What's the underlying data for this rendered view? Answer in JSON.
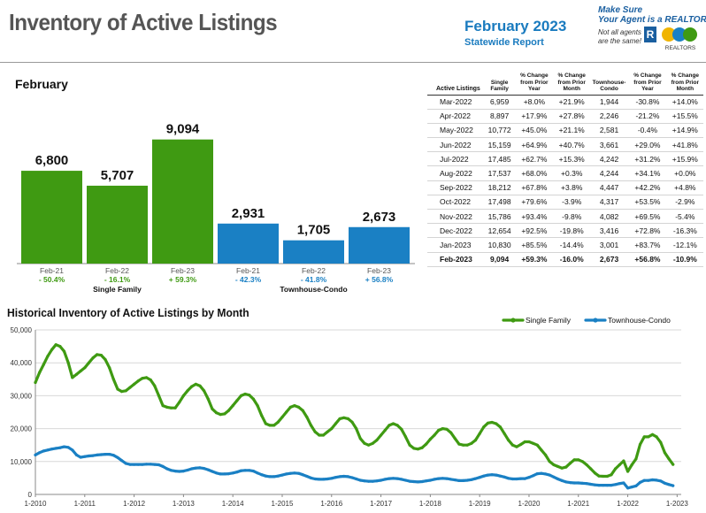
{
  "header": {
    "title": "Inventory of Active Listings",
    "report_month": "February 2023",
    "report_sub": "Statewide Report",
    "brand_line1": "Make Sure",
    "brand_line2": "Your Agent is a REALTOR®",
    "brand_note1": "Not all agents",
    "brand_note2": "are the same!",
    "realtor_mark": "R",
    "assoc_logo_text": "REALTORS"
  },
  "bar_section": {
    "title": "February",
    "group_labels": [
      "Single Family",
      "Townhouse-Condo"
    ]
  },
  "colors": {
    "single_family": "#3f9a12",
    "townhouse_condo": "#1a80c4",
    "positive_green": "#3f9a12",
    "negative_blue": "#1a80c4",
    "title_gray": "#555555",
    "report_blue": "#1a7bbf"
  },
  "stats_table": {
    "headers": [
      "Active Listings",
      "Single Family",
      "% Change from Prior Year",
      "% Change from Prior Month",
      "Townhouse-Condo",
      "% Change from Prior Year",
      "% Change from Prior Month"
    ],
    "rows": [
      [
        "Mar-2022",
        "6,959",
        "+8.0%",
        "+21.9%",
        "1,944",
        "-30.8%",
        "+14.0%"
      ],
      [
        "Apr-2022",
        "8,897",
        "+17.9%",
        "+27.8%",
        "2,246",
        "-21.2%",
        "+15.5%"
      ],
      [
        "May-2022",
        "10,772",
        "+45.0%",
        "+21.1%",
        "2,581",
        "-0.4%",
        "+14.9%"
      ],
      [
        "Jun-2022",
        "15,159",
        "+64.9%",
        "+40.7%",
        "3,661",
        "+29.0%",
        "+41.8%"
      ],
      [
        "Jul-2022",
        "17,485",
        "+62.7%",
        "+15.3%",
        "4,242",
        "+31.2%",
        "+15.9%"
      ],
      [
        "Aug-2022",
        "17,537",
        "+68.0%",
        "+0.3%",
        "4,244",
        "+34.1%",
        "+0.0%"
      ],
      [
        "Sep-2022",
        "18,212",
        "+67.8%",
        "+3.8%",
        "4,447",
        "+42.2%",
        "+4.8%"
      ],
      [
        "Oct-2022",
        "17,498",
        "+79.6%",
        "-3.9%",
        "4,317",
        "+53.5%",
        "-2.9%"
      ],
      [
        "Nov-2022",
        "15,786",
        "+93.4%",
        "-9.8%",
        "4,082",
        "+69.5%",
        "-5.4%"
      ],
      [
        "Dec-2022",
        "12,654",
        "+92.5%",
        "-19.8%",
        "3,416",
        "+72.8%",
        "-16.3%"
      ],
      [
        "Jan-2023",
        "10,830",
        "+85.5%",
        "-14.4%",
        "3,001",
        "+83.7%",
        "-12.1%"
      ],
      [
        "Feb-2023",
        "9,094",
        "+59.3%",
        "-16.0%",
        "2,673",
        "+56.8%",
        "-10.9%"
      ]
    ]
  },
  "historical": {
    "title": "Historical Inventory of Active Listings by Month"
  },
  "chart_data": [
    {
      "type": "bar",
      "title": "February",
      "categories": [
        "Feb-21",
        "Feb-22",
        "Feb-23",
        "Feb-21",
        "Feb-22",
        "Feb-23"
      ],
      "groups": [
        "Single Family",
        "Single Family",
        "Single Family",
        "Townhouse-Condo",
        "Townhouse-Condo",
        "Townhouse-Condo"
      ],
      "values": [
        6800,
        5707,
        9094,
        2931,
        1705,
        2673
      ],
      "value_labels": [
        "6,800",
        "5,707",
        "9,094",
        "2,931",
        "1,705",
        "2,673"
      ],
      "change_labels": [
        "- 50.4%",
        "- 16.1%",
        "+ 59.3%",
        "- 42.3%",
        "- 41.8%",
        "+ 56.8%"
      ],
      "bar_colors": [
        "#3f9a12",
        "#3f9a12",
        "#3f9a12",
        "#1a80c4",
        "#1a80c4",
        "#1a80c4"
      ],
      "ylim": [
        0,
        10500
      ]
    },
    {
      "type": "line",
      "title": "Historical Inventory of Active Listings by Month",
      "x_start": "2010-01",
      "x_end": "2023-02",
      "x_ticks": [
        "1-2010",
        "1-2011",
        "1-2012",
        "1-2013",
        "1-2014",
        "1-2015",
        "1-2016",
        "1-2017",
        "1-2018",
        "1-2019",
        "1-2020",
        "1-2021",
        "1-2022",
        "1-2023"
      ],
      "y_ticks": [
        "0",
        "10,000",
        "20,000",
        "30,000",
        "40,000",
        "50,000"
      ],
      "ylim": [
        0,
        50000
      ],
      "grid": true,
      "legend_position": "top-right",
      "series": [
        {
          "name": "Single Family",
          "color": "#3f9a12",
          "values": [
            34000,
            37000,
            39500,
            42000,
            44000,
            45500,
            45000,
            43500,
            40000,
            35500,
            36500,
            37500,
            38500,
            40000,
            41500,
            42500,
            42300,
            41000,
            38500,
            35000,
            32000,
            31300,
            31500,
            32500,
            33500,
            34500,
            35300,
            35500,
            34800,
            33000,
            30000,
            27000,
            26500,
            26300,
            26300,
            28000,
            30000,
            31500,
            32800,
            33500,
            33000,
            31500,
            29000,
            26000,
            24800,
            24300,
            24500,
            25500,
            27000,
            28500,
            30000,
            30500,
            30200,
            29000,
            27000,
            24000,
            21500,
            21000,
            21000,
            22000,
            23500,
            25000,
            26500,
            27000,
            26500,
            25500,
            23500,
            21000,
            19000,
            18000,
            18000,
            19000,
            20000,
            21500,
            23000,
            23300,
            23000,
            22000,
            20000,
            17000,
            15500,
            15000,
            15500,
            16500,
            18000,
            19500,
            21000,
            21500,
            21000,
            19800,
            17500,
            15000,
            14000,
            13800,
            14200,
            15300,
            16800,
            18000,
            19500,
            20000,
            19800,
            18800,
            17000,
            15300,
            15000,
            15000,
            15500,
            16500,
            18500,
            20500,
            21700,
            21900,
            21500,
            20500,
            18500,
            16500,
            15000,
            14500,
            15200,
            16000,
            16000,
            15500,
            15000,
            13500,
            12000,
            10000,
            9000,
            8500,
            8000,
            8300,
            9500,
            10500,
            10500,
            10000,
            9000,
            7800,
            6500,
            5600,
            5500,
            5500,
            6000,
            7800,
            9000,
            10200,
            7000,
            9000,
            10800,
            15200,
            17500,
            17500,
            18200,
            17500,
            15800,
            12700,
            10800,
            9100
          ]
        },
        {
          "name": "Townhouse-Condo",
          "color": "#1a80c4",
          "values": [
            12000,
            12700,
            13200,
            13500,
            13800,
            14000,
            14200,
            14500,
            14300,
            13500,
            12000,
            11300,
            11500,
            11700,
            11800,
            12000,
            12100,
            12200,
            12200,
            11900,
            11200,
            10300,
            9400,
            9100,
            9100,
            9100,
            9100,
            9200,
            9200,
            9100,
            9000,
            8500,
            7800,
            7300,
            7100,
            7000,
            7100,
            7400,
            7800,
            8000,
            8100,
            7900,
            7500,
            7000,
            6500,
            6200,
            6200,
            6300,
            6500,
            6800,
            7200,
            7300,
            7300,
            7100,
            6500,
            6000,
            5600,
            5400,
            5400,
            5600,
            5900,
            6200,
            6400,
            6500,
            6400,
            6000,
            5500,
            5000,
            4700,
            4600,
            4600,
            4700,
            4900,
            5200,
            5400,
            5500,
            5400,
            5100,
            4700,
            4300,
            4100,
            4000,
            4000,
            4100,
            4300,
            4600,
            4800,
            4900,
            4800,
            4600,
            4300,
            4000,
            3900,
            3800,
            3900,
            4100,
            4300,
            4600,
            4800,
            4900,
            4800,
            4600,
            4400,
            4200,
            4200,
            4300,
            4500,
            4800,
            5200,
            5600,
            5900,
            6000,
            5900,
            5600,
            5300,
            4900,
            4700,
            4700,
            4800,
            4800,
            5200,
            5700,
            6300,
            6400,
            6200,
            5900,
            5300,
            4700,
            4200,
            3800,
            3600,
            3500,
            3500,
            3400,
            3300,
            3100,
            2900,
            2800,
            2800,
            2800,
            2800,
            3000,
            3300,
            3500,
            1944,
            2246,
            2581,
            3661,
            4242,
            4244,
            4447,
            4317,
            4082,
            3416,
            3001,
            2673
          ]
        }
      ]
    }
  ]
}
